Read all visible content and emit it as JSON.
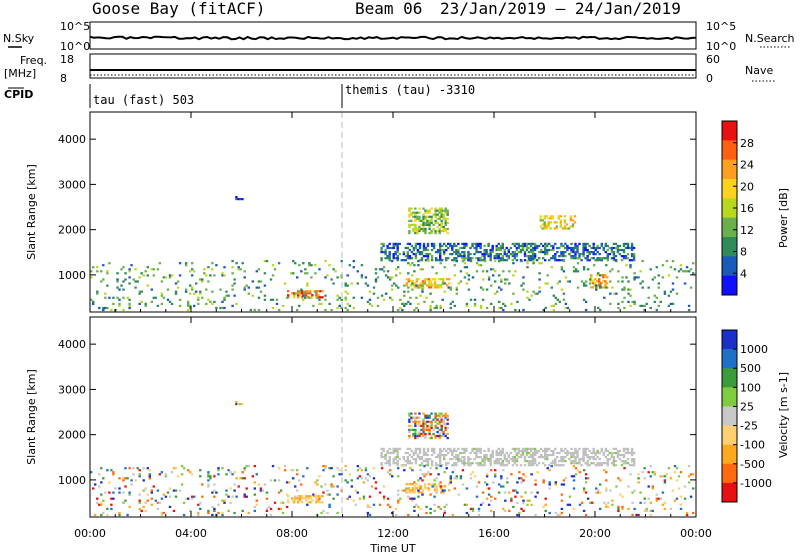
{
  "header": {
    "station": "Goose Bay (fitACF)",
    "beam": "Beam 06",
    "dates": "23/Jan/2019 – 24/Jan/2019"
  },
  "noise_panel": {
    "left_label": "N.Sky",
    "left_ticks": [
      "10^5",
      "10^0"
    ],
    "right_label": "N.Search",
    "right_ticks": [
      "10^5",
      "10^0"
    ]
  },
  "freq_panel": {
    "left_label_1": "Freq.",
    "left_label_2": "[MHz]",
    "left_ticks": [
      "18",
      "8"
    ],
    "right_label": "Nave",
    "right_ticks": [
      "60",
      "0"
    ]
  },
  "cpid_panel": {
    "label": "CPID",
    "modes": [
      {
        "text": "tau (fast) 503",
        "start_hour": 0
      },
      {
        "text": "themis (tau) -3310",
        "start_hour": 10
      }
    ]
  },
  "colors": {
    "power_scale": [
      "#1010ff",
      "#1a5ab8",
      "#2e8b57",
      "#6ab04c",
      "#b8d820",
      "#ffd21e",
      "#ffa020",
      "#ff6010",
      "#e81010"
    ],
    "velocity_scale": [
      "#e81010",
      "#ff6a10",
      "#ffa820",
      "#ffd070",
      "#c8c8c8",
      "#c8c8c8",
      "#80cc40",
      "#3c9c3c",
      "#2070c8",
      "#1a30c8"
    ],
    "ground_scatter": "#c0c0c0"
  },
  "chart_data": [
    {
      "type": "heatmap",
      "quantity": "Power",
      "ylabel": "Slant Range [km]",
      "ylim": [
        180,
        4600
      ],
      "yticks": [
        1000,
        2000,
        3000,
        4000
      ],
      "xlim": [
        0,
        24
      ],
      "colorbar": {
        "label": "Power [dB]",
        "range": [
          0,
          32
        ],
        "ticks": [
          "4",
          "8",
          "12",
          "16",
          "20",
          "24",
          "28"
        ]
      },
      "echo_regions": [
        {
          "t0": 5.75,
          "t1": 6.0,
          "r0": 2650,
          "r1": 2780,
          "level": 1
        },
        {
          "t0": 7.8,
          "t1": 9.2,
          "r0": 480,
          "r1": 640,
          "level": 7
        },
        {
          "t0": 11.5,
          "t1": 21.5,
          "r0": 1300,
          "r1": 1700,
          "level": 2
        },
        {
          "t0": 12.6,
          "t1": 14.2,
          "r0": 1900,
          "r1": 2450,
          "level": 4
        },
        {
          "t0": 17.8,
          "t1": 19.2,
          "r0": 2000,
          "r1": 2300,
          "level": 5
        },
        {
          "t0": 12.5,
          "t1": 14.2,
          "r0": 700,
          "r1": 900,
          "level": 6
        },
        {
          "t0": 19.8,
          "t1": 20.5,
          "r0": 700,
          "r1": 1000,
          "level": 6
        },
        {
          "t0": 0.0,
          "t1": 23.9,
          "r0": 200,
          "r1": 1300,
          "level": 3
        }
      ]
    },
    {
      "type": "heatmap",
      "quantity": "Velocity",
      "xlabel": "Time UT",
      "ylabel": "Slant Range [km]",
      "ylim": [
        180,
        4600
      ],
      "yticks": [
        1000,
        2000,
        3000,
        4000
      ],
      "xlim": [
        0,
        24
      ],
      "xticks": [
        "00:00",
        "04:00",
        "08:00",
        "12:00",
        "16:00",
        "20:00",
        "00:00"
      ],
      "colorbar": {
        "label": "Velocity [m s-1]",
        "ticks": [
          "-1000",
          "-500",
          "-100",
          "-25",
          "25",
          "100",
          "500",
          "1000"
        ]
      },
      "echo_regions": [
        {
          "t0": 5.75,
          "t1": 6.0,
          "r0": 2650,
          "r1": 2780,
          "class": "mixed"
        },
        {
          "t0": 7.8,
          "t1": 9.2,
          "r0": 480,
          "r1": 640,
          "class": "negative-low"
        },
        {
          "t0": 11.5,
          "t1": 21.5,
          "r0": 1300,
          "r1": 1700,
          "class": "ground"
        },
        {
          "t0": 12.6,
          "t1": 14.2,
          "r0": 1900,
          "r1": 2450,
          "class": "mixed"
        },
        {
          "t0": 12.5,
          "t1": 14.2,
          "r0": 700,
          "r1": 900,
          "class": "negative-low"
        },
        {
          "t0": 0.0,
          "t1": 23.9,
          "r0": 200,
          "r1": 1300,
          "class": "mixed"
        }
      ]
    }
  ]
}
